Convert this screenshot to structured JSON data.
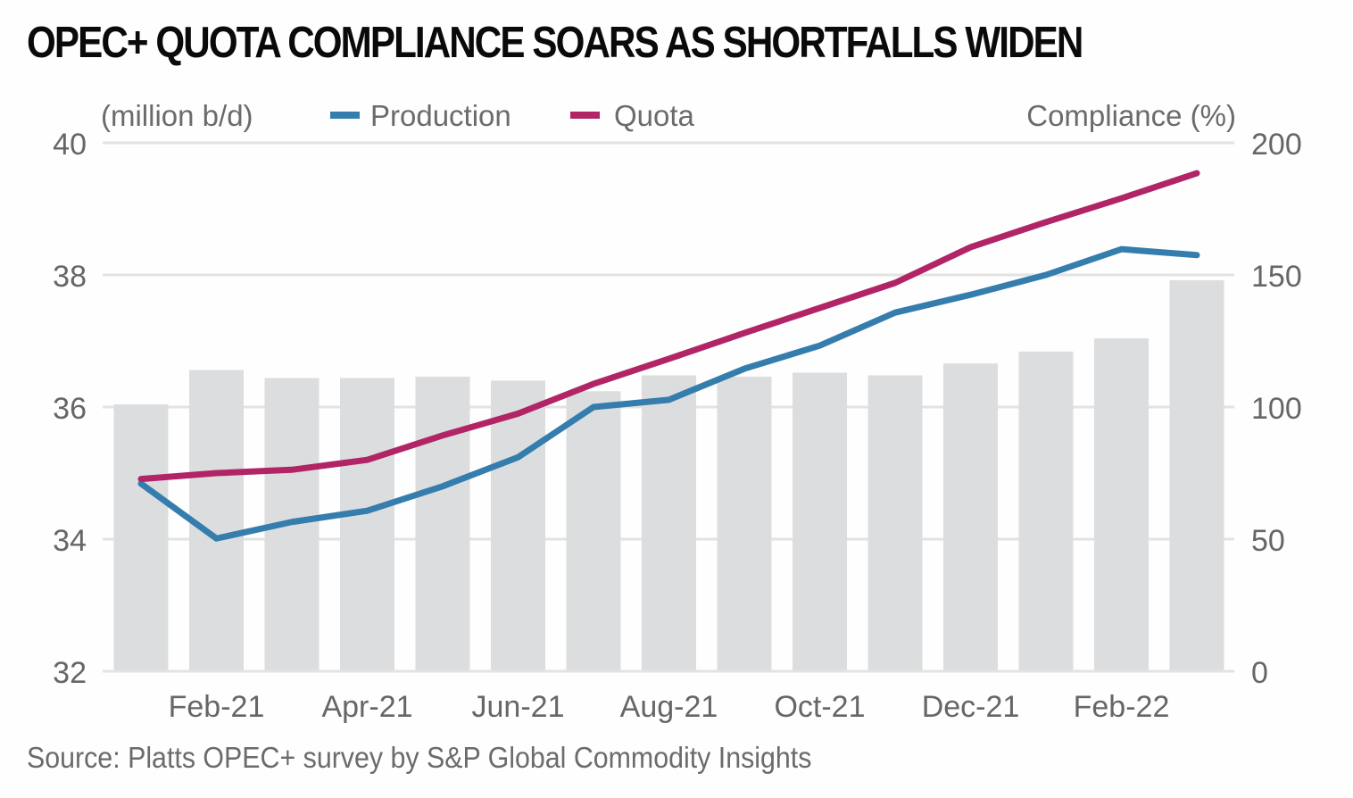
{
  "title": "OPEC+ QUOTA COMPLIANCE SOARS AS SHORTFALLS WIDEN",
  "source": "Source: Platts OPEC+ survey by S&P Global Commodity Insights",
  "colors": {
    "production": "#347dad",
    "quota": "#b12566",
    "bars": "#dcdddf",
    "grid": "#e3e3e3",
    "text": "#666666",
    "title": "#0a0a0a"
  },
  "chart_data": {
    "type": "bar+line",
    "title": "OPEC+ QUOTA COMPLIANCE SOARS AS SHORTFALLS WIDEN",
    "left_axis_label": "(million b/d)",
    "right_axis_label": "Compliance (%)",
    "left_ylim": [
      32,
      40
    ],
    "left_ticks": [
      32,
      34,
      36,
      38,
      40
    ],
    "right_ylim": [
      0,
      200
    ],
    "right_ticks": [
      0,
      50,
      100,
      150,
      200
    ],
    "grid": true,
    "legend_position": "top",
    "legend": [
      {
        "name": "Production",
        "color": "#347dad"
      },
      {
        "name": "Quota",
        "color": "#b12566"
      }
    ],
    "categories": [
      "Jan-21",
      "Feb-21",
      "Mar-21",
      "Apr-21",
      "May-21",
      "Jun-21",
      "Jul-21",
      "Aug-21",
      "Sep-21",
      "Oct-21",
      "Nov-21",
      "Dec-21",
      "Jan-22",
      "Feb-22",
      "Mar-22"
    ],
    "x_tick_labels": [
      "Feb-21",
      "Apr-21",
      "Jun-21",
      "Aug-21",
      "Oct-21",
      "Dec-21",
      "Feb-22"
    ],
    "series": [
      {
        "name": "Compliance",
        "type": "bar",
        "axis": "right",
        "values": [
          101,
          114,
          111,
          111,
          111.5,
          110,
          106,
          112,
          111.5,
          113,
          112,
          116.5,
          121,
          126,
          148
        ]
      },
      {
        "name": "Production",
        "type": "line",
        "axis": "left",
        "values": [
          34.84,
          34.01,
          34.26,
          34.43,
          34.8,
          35.24,
          36.0,
          36.11,
          36.58,
          36.93,
          37.43,
          37.7,
          38.0,
          38.39,
          38.3
        ]
      },
      {
        "name": "Quota",
        "type": "line",
        "axis": "left",
        "values": [
          34.91,
          35.0,
          35.05,
          35.2,
          35.57,
          35.9,
          36.35,
          36.73,
          37.12,
          37.5,
          37.88,
          38.42,
          38.8,
          39.16,
          39.54
        ]
      }
    ]
  }
}
